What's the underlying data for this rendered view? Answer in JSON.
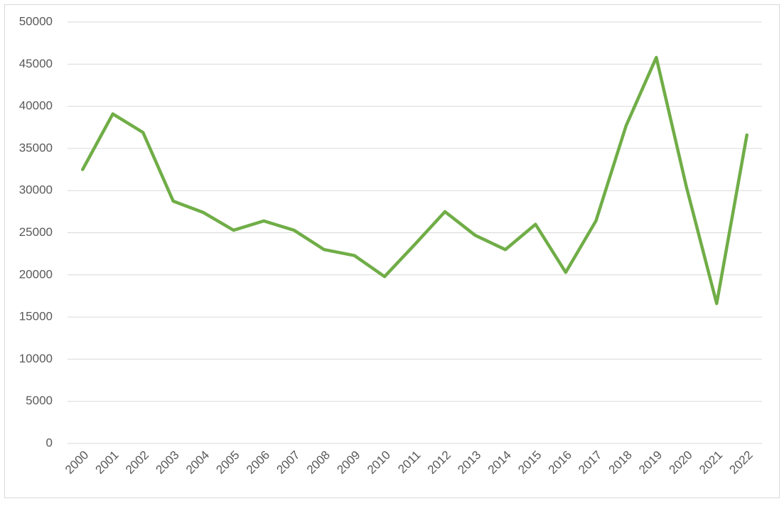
{
  "chart_data": {
    "type": "line",
    "categories": [
      "2000",
      "2001",
      "2002",
      "2003",
      "2004",
      "2005",
      "2006",
      "2007",
      "2008",
      "2009",
      "2010",
      "2011",
      "2012",
      "2013",
      "2014",
      "2015",
      "2016",
      "2017",
      "2018",
      "2019",
      "2020",
      "2021",
      "2022"
    ],
    "series": [
      {
        "color": "#70ad47",
        "values": [
          32500,
          39100,
          36900,
          28750,
          27400,
          25300,
          26400,
          25300,
          23000,
          22300,
          19800,
          23600,
          27500,
          24700,
          23000,
          26000,
          20300,
          26400,
          37700,
          45800,
          30400,
          16600,
          36600
        ]
      }
    ],
    "ylim": [
      0,
      50000
    ],
    "yticks": [
      0,
      5000,
      10000,
      15000,
      20000,
      25000,
      30000,
      35000,
      40000,
      45000,
      50000
    ],
    "grid": true
  }
}
